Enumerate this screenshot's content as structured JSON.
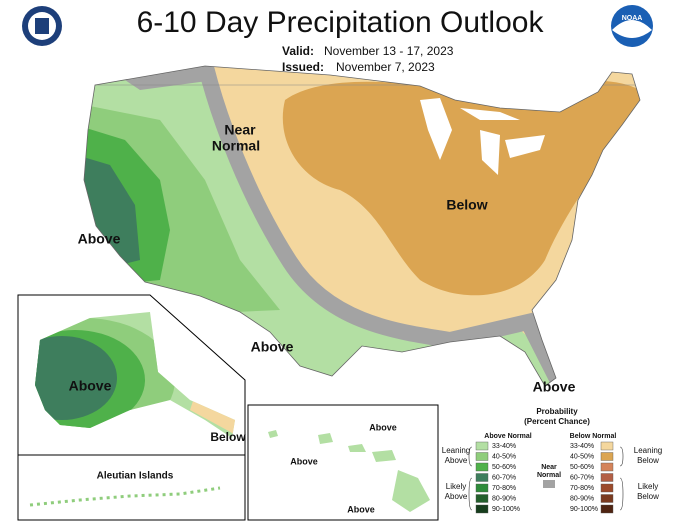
{
  "header": {
    "title": "6-10 Day Precipitation Outlook",
    "valid_label": "Valid:",
    "valid": "November 13 - 17, 2023",
    "issued_label": "Issued:",
    "issued": "November 7, 2023"
  },
  "map_labels": {
    "near_normal": [
      "Near",
      "Normal"
    ],
    "west": "Above",
    "east": "Below",
    "south": "Above",
    "florida": "Above",
    "alaska": "Above",
    "alaska_southeast": "Below",
    "hawaii_north": "Above",
    "hawaii_west": "Above",
    "hawaii_south": "Above",
    "aleutian": "Aleutian Islands"
  },
  "legend": {
    "title": "Probability",
    "subtitle": "(Percent Chance)",
    "above_header": "Above Normal",
    "below_header": "Below Normal",
    "near": [
      "Near",
      "Normal"
    ],
    "above_items": [
      "33-40%",
      "40-50%",
      "50-60%",
      "60-70%",
      "70-80%",
      "80-90%",
      "90-100%"
    ],
    "above_colors": [
      "#b3dfa3",
      "#8fcd7c",
      "#4fb14a",
      "#3e7e5d",
      "#2e8b3a",
      "#235f2c",
      "#173d1d"
    ],
    "below_items": [
      "33-40%",
      "40-50%",
      "50-60%",
      "60-70%",
      "70-80%",
      "80-90%",
      "90-100%"
    ],
    "below_colors": [
      "#f4d79e",
      "#dba552",
      "#d4835a",
      "#b35f45",
      "#9c4a2b",
      "#7a3a1f",
      "#4f2412"
    ],
    "near_color": "#a3a3a3",
    "leaning_above": [
      "Leaning",
      "Above"
    ],
    "likely_above": [
      "Likely",
      "Above"
    ],
    "leaning_below": [
      "Leaning",
      "Below"
    ],
    "likely_below": [
      "Likely",
      "Below"
    ]
  }
}
